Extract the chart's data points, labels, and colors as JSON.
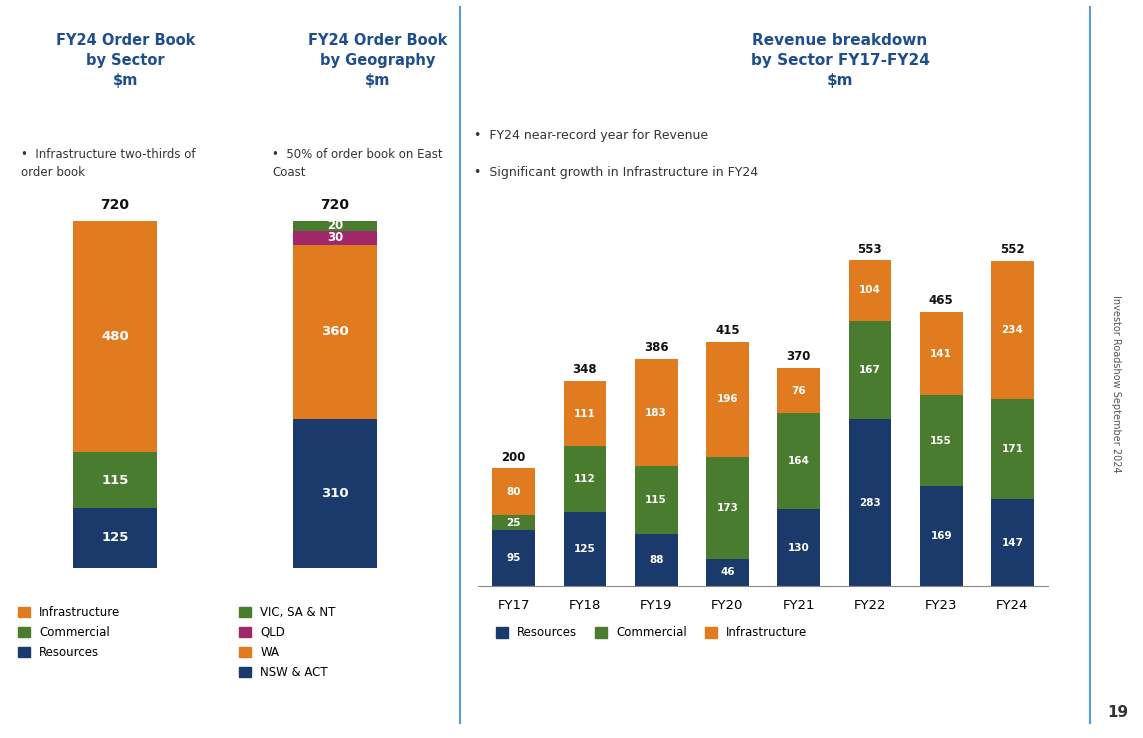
{
  "title_sector": "FY24 Order Book\nby Sector\n$m",
  "title_geo": "FY24 Order Book\nby Geography\n$m",
  "title_revenue": "Revenue breakdown\nby Sector FY17-FY24\n$m",
  "bullet_sector": "Infrastructure two-thirds of\norder book",
  "bullet_geo": "50% of order book on East\nCoast",
  "bullet_rev1": "FY24 near-record year for Revenue",
  "bullet_rev2": "Significant growth in Infrastructure in FY24",
  "sector_bar": {
    "Resources": 125,
    "Commercial": 115,
    "Infrastructure": 480,
    "total": 720
  },
  "geo_bar": {
    "NSW_ACT": 310,
    "WA": 360,
    "QLD": 30,
    "VIC_SA_NT": 20,
    "total": 720
  },
  "revenue_years": [
    "FY17",
    "FY18",
    "FY19",
    "FY20",
    "FY21",
    "FY22",
    "FY23",
    "FY24"
  ],
  "revenue_resources": [
    95,
    125,
    88,
    46,
    130,
    283,
    169,
    147
  ],
  "revenue_commercial": [
    25,
    112,
    115,
    173,
    164,
    167,
    155,
    171
  ],
  "revenue_infrastructure": [
    80,
    111,
    183,
    196,
    76,
    104,
    141,
    234
  ],
  "revenue_totals": [
    200,
    348,
    386,
    415,
    370,
    553,
    465,
    552
  ],
  "color_infrastructure": "#E07B20",
  "color_commercial": "#4A7C2F",
  "color_resources": "#1A3A6B",
  "color_wa": "#E07B20",
  "color_nsw_act": "#1A3A6B",
  "color_qld": "#A0286A",
  "color_vic_sa_nt": "#4A7C2F",
  "title_color": "#1F4E8C",
  "background_color": "#FFFFFF",
  "sidebar_text": "Investor Roadshow September 2024",
  "page_number": "19"
}
